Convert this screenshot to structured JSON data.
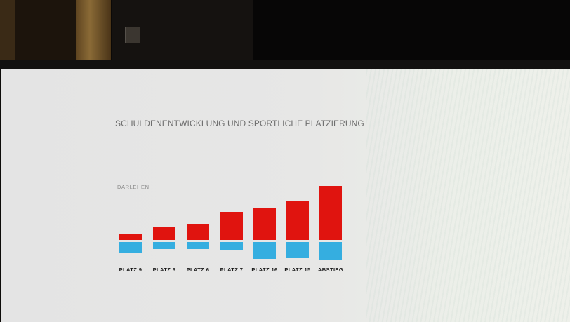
{
  "chart_data": {
    "type": "bar",
    "title": "SCHULDENENTWICKLUNG UND SPORTLICHE PLATZIERUNG",
    "series_label": "DARLEHEN",
    "categories": [
      "PLATZ 9",
      "PLATZ 6",
      "PLATZ 6",
      "PLATZ 7",
      "PLATZ 16",
      "PLATZ 15",
      "ABSTIEG"
    ],
    "series": [
      {
        "values": [
          9,
          18,
          23,
          40,
          46,
          55,
          77
        ]
      },
      {
        "values": [
          15,
          10,
          10,
          11,
          24,
          23,
          25
        ]
      }
    ],
    "colors": {
      "upper": "#e0140f",
      "lower": "#35aee0"
    },
    "grid": false
  }
}
